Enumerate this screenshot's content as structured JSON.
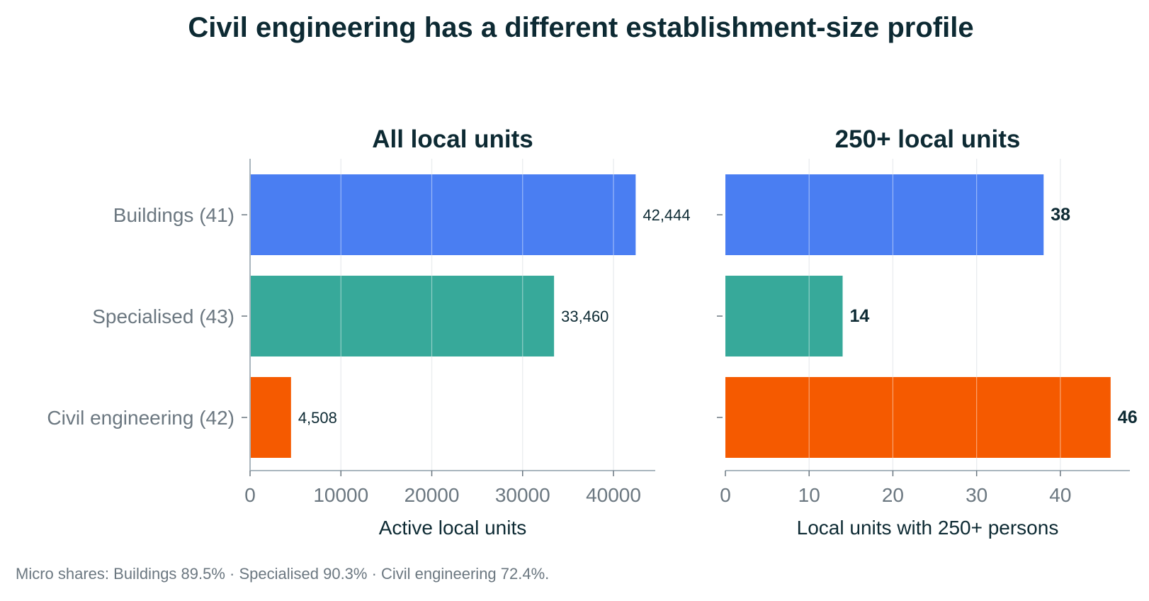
{
  "title": "Civil engineering has a different establishment-size profile",
  "footnote": "Micro shares: Buildings 89.5% · Specialised 90.3% · Civil engineering 72.4%.",
  "colors": {
    "buildings": "#4a7ef2",
    "specialised": "#37a99a",
    "civil": "#f55a00",
    "title_text": "#0d2a33",
    "label_text": "#6b7780"
  },
  "chart_data": [
    {
      "type": "bar",
      "orientation": "horizontal",
      "title": "All local units",
      "xlabel": "Active local units",
      "categories": [
        "Buildings (41)",
        "Specialised (43)",
        "Civil engineering (42)"
      ],
      "values": [
        42444,
        33460,
        4508
      ],
      "value_labels": [
        "42,444",
        "33,460",
        "4,508"
      ],
      "xlim": [
        0,
        44600
      ],
      "xticks": [
        0,
        10000,
        20000,
        30000,
        40000
      ],
      "xtick_labels": [
        "0",
        "10000",
        "20000",
        "30000",
        "40000"
      ],
      "grid": true
    },
    {
      "type": "bar",
      "orientation": "horizontal",
      "title": "250+ local units",
      "xlabel": "Local units with 250+ persons",
      "categories": [
        "Buildings (41)",
        "Specialised (43)",
        "Civil engineering (42)"
      ],
      "values": [
        38,
        14,
        46
      ],
      "value_labels": [
        "38",
        "14",
        "46"
      ],
      "xlim": [
        0,
        48.3
      ],
      "xticks": [
        0,
        10,
        20,
        30,
        40
      ],
      "xtick_labels": [
        "0",
        "10",
        "20",
        "30",
        "40"
      ],
      "grid": true
    }
  ]
}
